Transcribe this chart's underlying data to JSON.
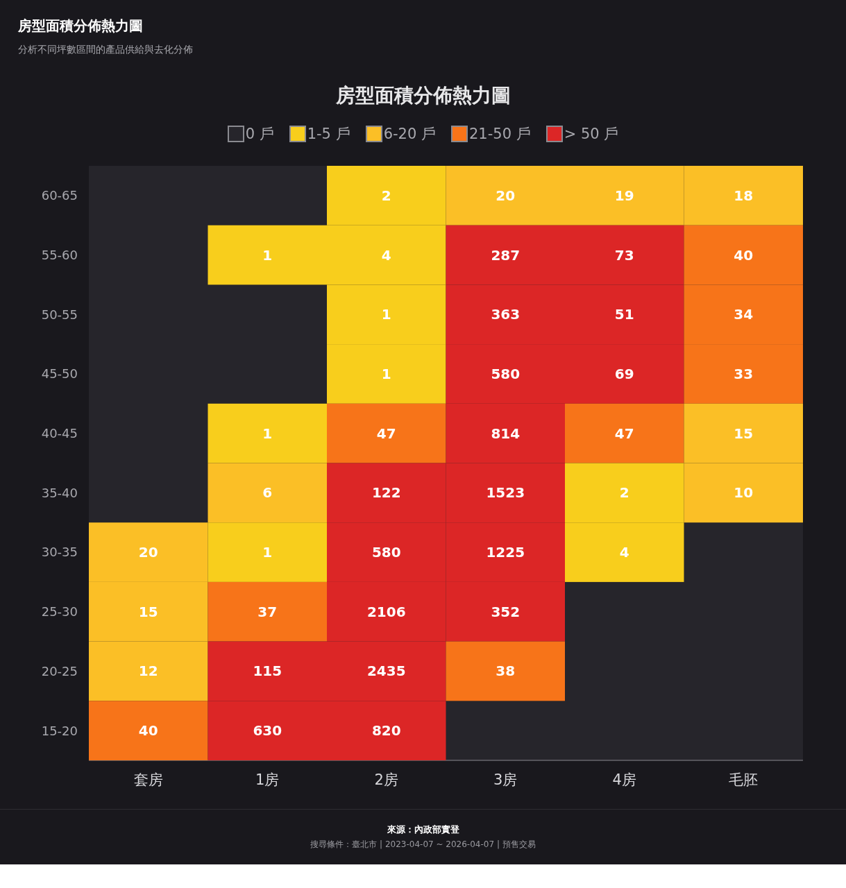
{
  "chart_data": {
    "type": "heatmap",
    "title": "房型面積分佈熱力圖",
    "subtitle": "分析不同坪數區間的產品供給與去化分佈",
    "categories": [
      "套房",
      "1房",
      "2房",
      "3房",
      "4房",
      "毛胚"
    ],
    "y_categories": [
      "60-65",
      "55-60",
      "50-55",
      "45-50",
      "40-45",
      "35-40",
      "30-35",
      "25-30",
      "20-25",
      "15-20"
    ],
    "cells": [
      [
        null,
        null,
        2,
        20,
        19,
        18
      ],
      [
        null,
        1,
        4,
        287,
        73,
        40
      ],
      [
        null,
        null,
        1,
        363,
        51,
        34
      ],
      [
        null,
        null,
        1,
        580,
        69,
        33
      ],
      [
        null,
        1,
        47,
        814,
        47,
        15
      ],
      [
        null,
        6,
        122,
        1523,
        2,
        10
      ],
      [
        20,
        1,
        580,
        1225,
        4,
        null
      ],
      [
        15,
        37,
        2106,
        352,
        null,
        null
      ],
      [
        12,
        115,
        2435,
        38,
        null,
        null
      ],
      [
        40,
        630,
        820,
        null,
        null,
        null
      ]
    ],
    "data_labels": true,
    "colors": [
      [
        null,
        null,
        "#f8ce1c",
        "#fbbf26",
        "#fbbf26",
        "#fbbf26"
      ],
      [
        null,
        "#f8ce1c",
        "#f8ce1c",
        "#dc2626",
        "#dc2626",
        "#f77419"
      ],
      [
        null,
        null,
        "#f8ce1c",
        "#dc2626",
        "#dc2626",
        "#f77419"
      ],
      [
        null,
        null,
        "#f8ce1c",
        "#dc2626",
        "#dc2626",
        "#f77419"
      ],
      [
        null,
        "#f8ce1c",
        "#f77419",
        "#dc2626",
        "#f77419",
        "#fbbf26"
      ],
      [
        null,
        "#fbbf26",
        "#dc2626",
        "#dc2626",
        "#f8ce1c",
        "#fbbf26"
      ],
      [
        "#fbbf26",
        "#f8ce1c",
        "#dc2626",
        "#dc2626",
        "#f8ce1c",
        null
      ],
      [
        "#fbbf26",
        "#f77419",
        "#dc2626",
        "#dc2626",
        null,
        null
      ],
      [
        "#fbbf26",
        "#dc2626",
        "#dc2626",
        "#f77419",
        null,
        null
      ],
      [
        "#f77419",
        "#dc2626",
        "#dc2626",
        null,
        null,
        null
      ]
    ],
    "series": [
      {
        "name": "0 戶",
        "color": "#26252b",
        "values": [
          null,
          null,
          null,
          null,
          null,
          null
        ]
      },
      {
        "name": "1-5 戶",
        "color": "#f8ce1c",
        "values": [
          null,
          null,
          null,
          null,
          null,
          null
        ]
      },
      {
        "name": "6-20 戶",
        "color": "#fbbf26",
        "values": [
          null,
          null,
          null,
          null,
          null,
          null
        ]
      },
      {
        "name": "21-50 戶",
        "color": "#f77419",
        "values": [
          null,
          null,
          null,
          null,
          null,
          null
        ]
      },
      {
        "name": "> 50 戶",
        "color": "#dc2626",
        "values": [
          null,
          null,
          null,
          null,
          null,
          null
        ]
      }
    ],
    "legend": "top",
    "annotations": [
      "來源：內政部實登",
      "搜尋條件：臺北市 | 2023-04-07 ~ 2026-04-07 | 預售交易"
    ]
  }
}
